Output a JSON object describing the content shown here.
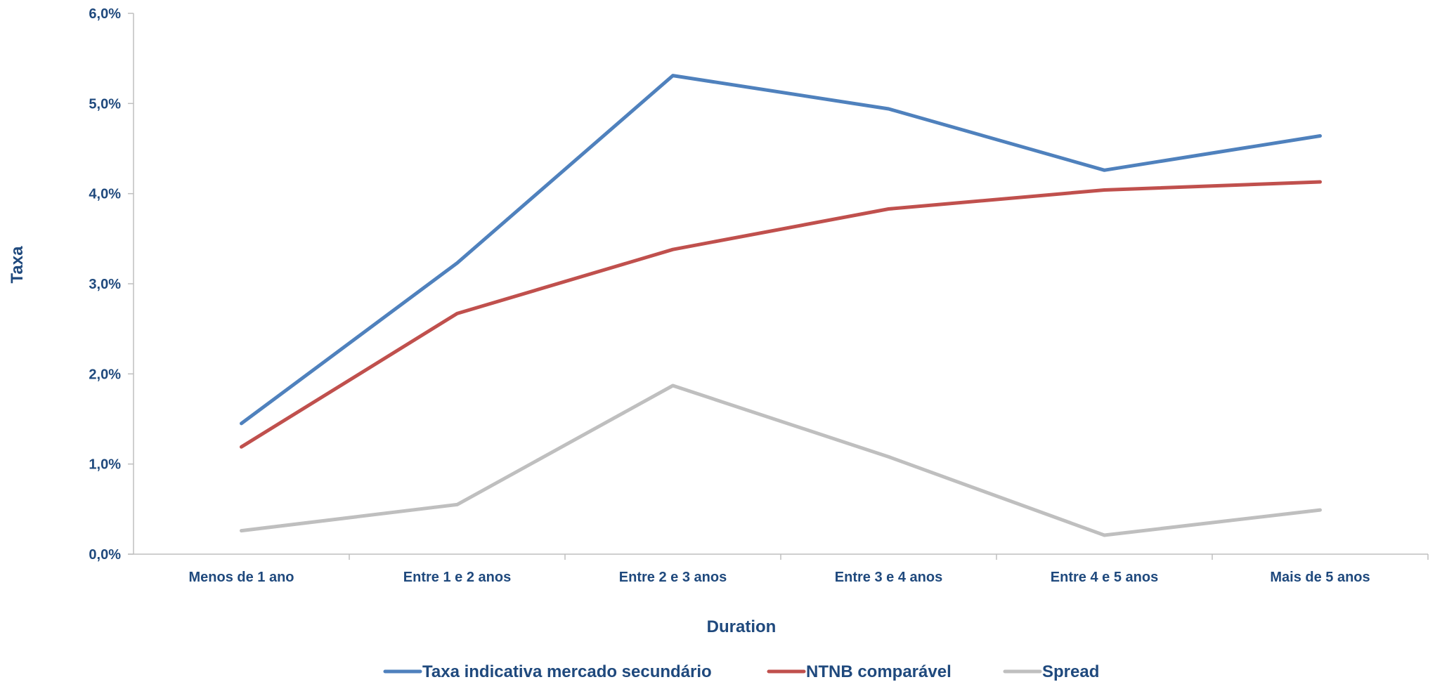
{
  "chart_data": {
    "type": "line",
    "title": "",
    "xlabel": "Duration",
    "ylabel": "Taxa",
    "categories": [
      "Menos de 1 ano",
      "Entre 1 e 2 anos",
      "Entre 2 e 3 anos",
      "Entre 3 e 4 anos",
      "Entre 4 e 5 anos",
      "Mais de 5 anos"
    ],
    "y_ticks": [
      "0,0%",
      "1,0%",
      "2,0%",
      "3,0%",
      "4,0%",
      "5,0%",
      "6,0%"
    ],
    "ylim": [
      0,
      6
    ],
    "y_unit": "%",
    "grid": false,
    "legend_position": "bottom",
    "series": [
      {
        "name": "Taxa indicativa mercado secundário",
        "color": "#4F81BD",
        "values": [
          1.45,
          3.23,
          5.31,
          4.94,
          4.26,
          4.64
        ]
      },
      {
        "name": "NTNB comparável",
        "color": "#C0504D",
        "values": [
          1.19,
          2.67,
          3.38,
          3.83,
          4.04,
          4.13
        ]
      },
      {
        "name": "Spread",
        "color": "#BFBFBF",
        "values": [
          0.26,
          0.55,
          1.87,
          1.08,
          0.21,
          0.49
        ]
      }
    ]
  }
}
